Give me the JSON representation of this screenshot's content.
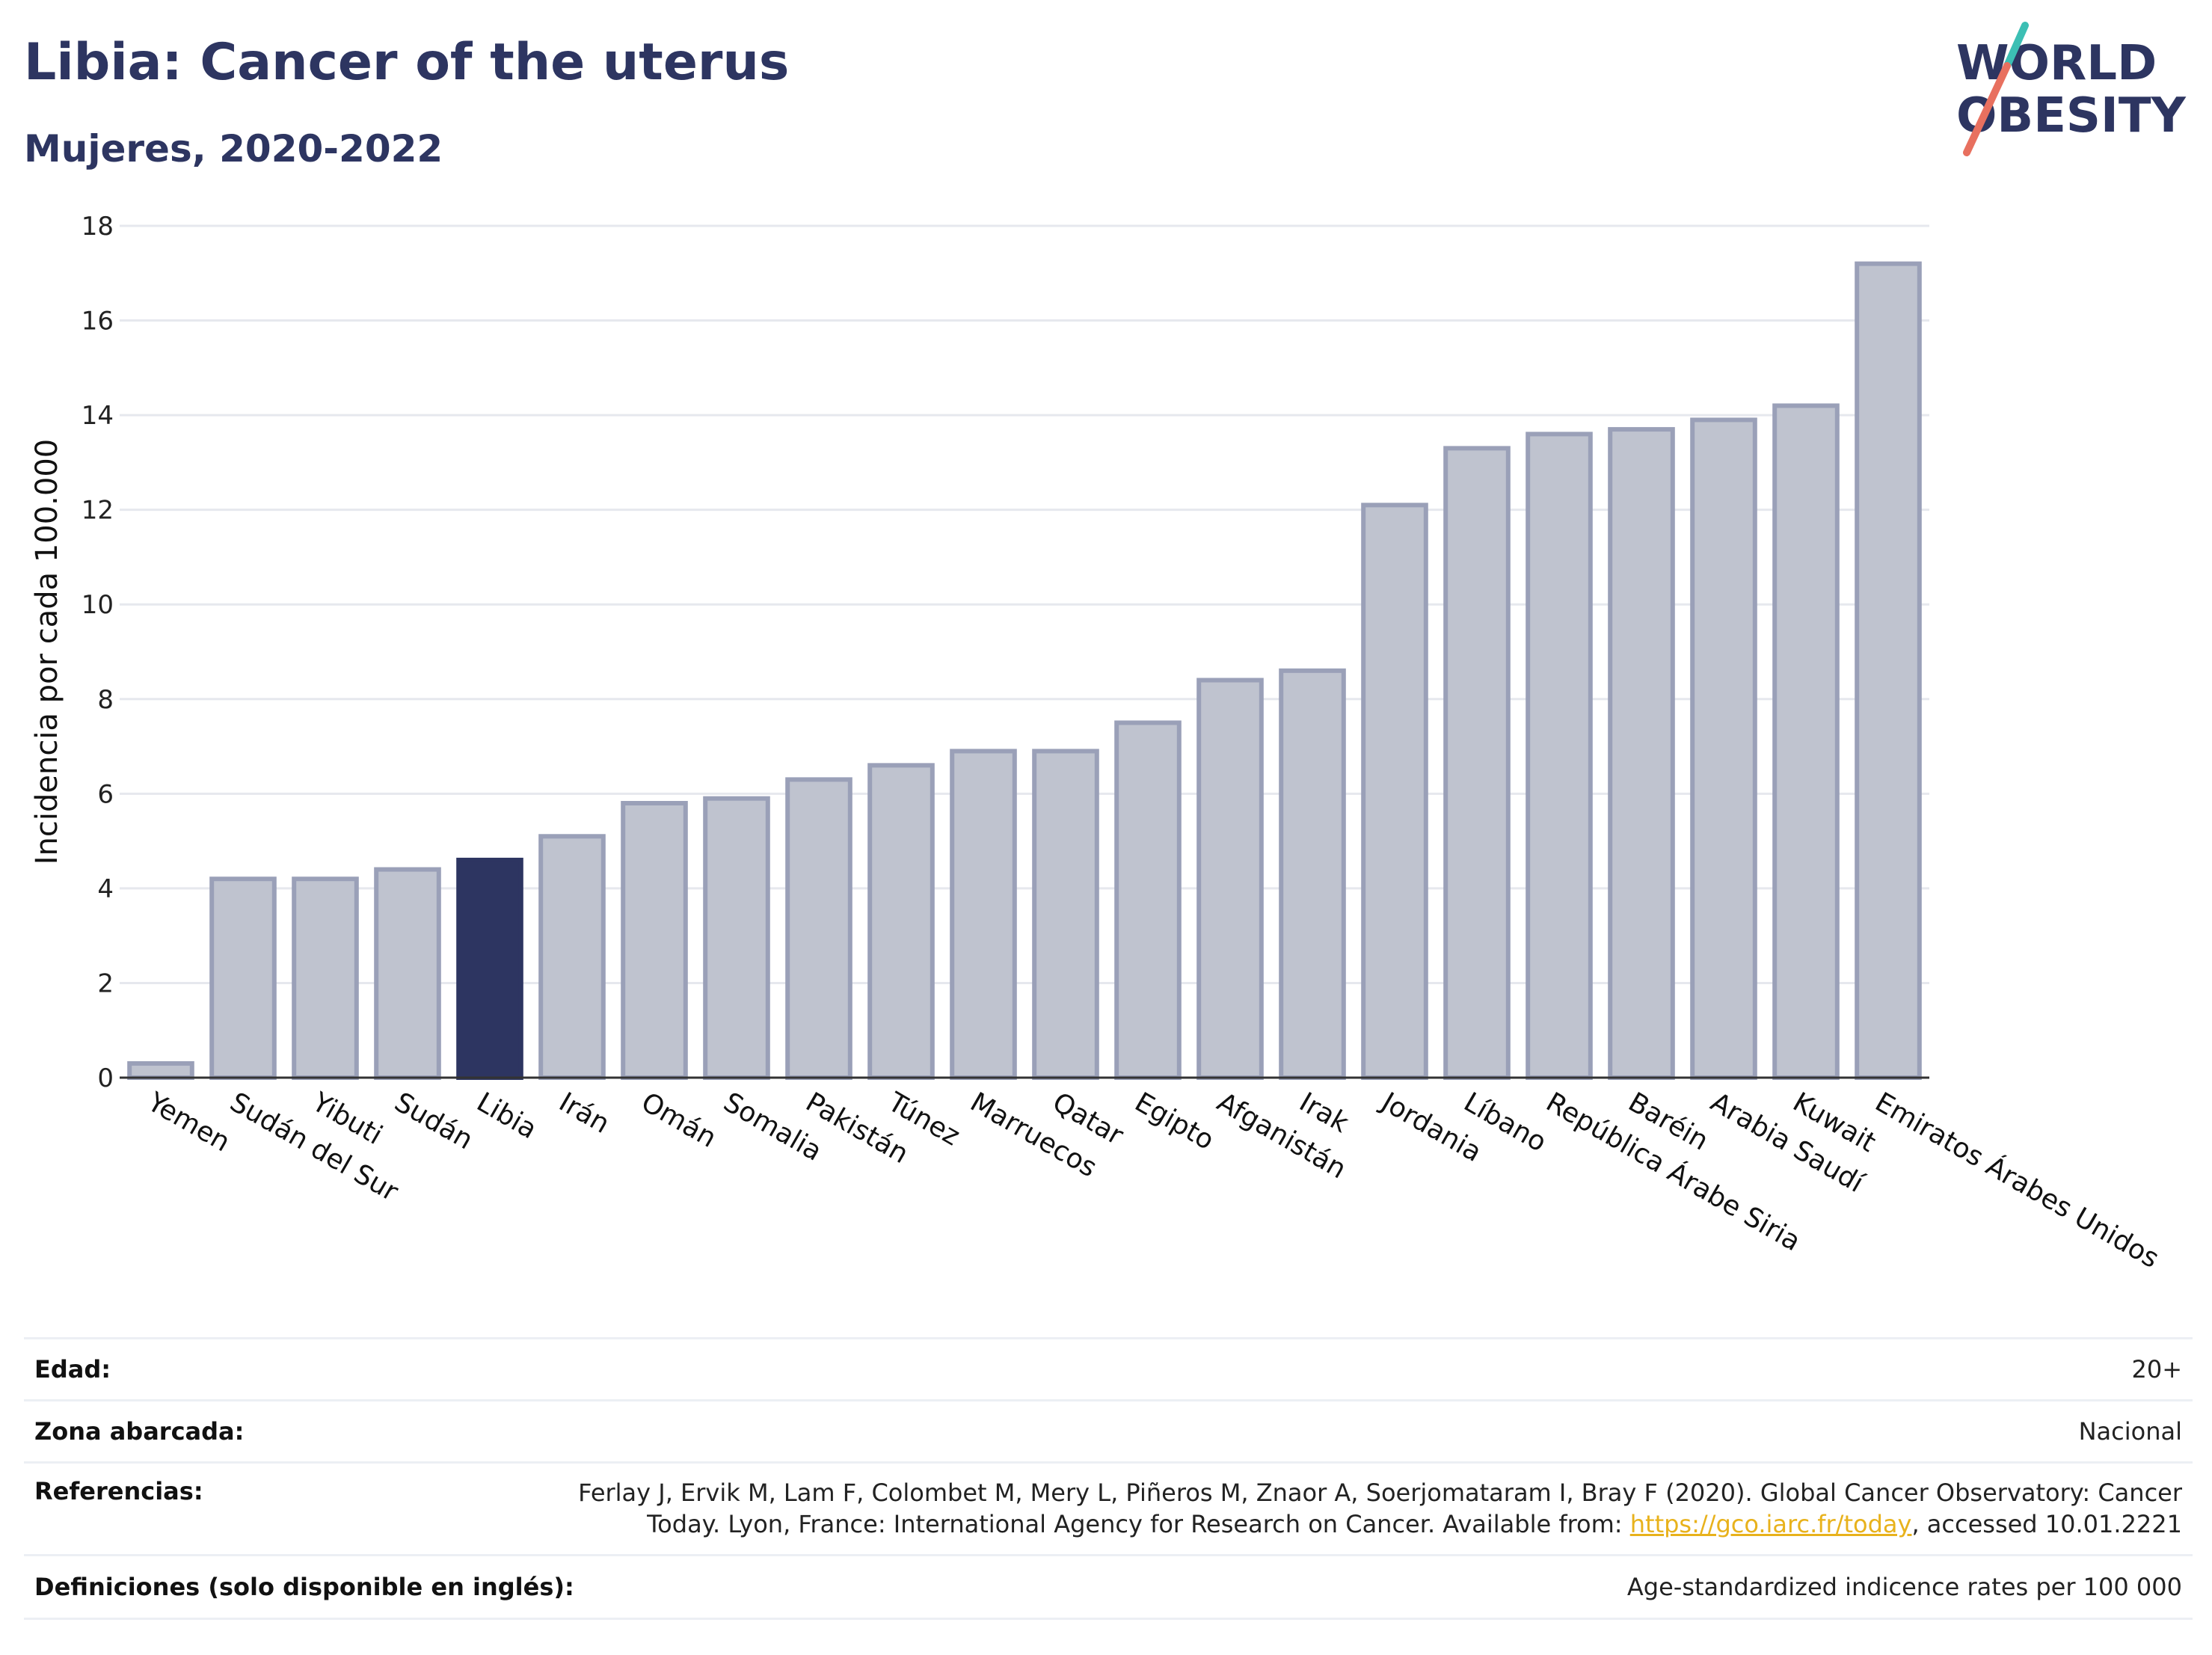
{
  "header": {
    "title": "Libia: Cancer of the uterus",
    "subtitle": "Mujeres, 2020-2022"
  },
  "logo": {
    "line1": "WORLD",
    "line2": "OBESITY",
    "accent_teal": "#3cbfb4",
    "accent_coral": "#e8705f",
    "text_color": "#2d3561"
  },
  "chart_data": {
    "type": "bar",
    "title": "Libia: Cancer of the uterus",
    "subtitle": "Mujeres, 2020-2022",
    "ylabel": "Incidencia por cada 100.000",
    "xlabel": "",
    "ylim": [
      0,
      18
    ],
    "yticks": [
      0,
      2,
      4,
      6,
      8,
      10,
      12,
      14,
      16,
      18
    ],
    "grid": true,
    "highlight": "Libia",
    "highlight_color": "#2d3561",
    "bar_color": "#bfc3cf",
    "bar_edge_color": "#9aa0b8",
    "categories": [
      "Yemen",
      "Sudán del Sur",
      "Yibuti",
      "Sudán",
      "Libia",
      "Irán",
      "Omán",
      "Somalia",
      "Pakistán",
      "Túnez",
      "Marruecos",
      "Qatar",
      "Egipto",
      "Afganistán",
      "Irak",
      "Jordania",
      "Líbano",
      "República Árabe Siria",
      "Baréin",
      "Arabia Saudí",
      "Kuwait",
      "Emiratos Árabes Unidos"
    ],
    "values": [
      0.3,
      4.2,
      4.2,
      4.4,
      4.6,
      5.1,
      5.8,
      5.9,
      6.3,
      6.6,
      6.9,
      6.9,
      7.5,
      8.4,
      8.6,
      12.1,
      13.3,
      13.6,
      13.7,
      13.9,
      14.2,
      17.2
    ]
  },
  "meta": {
    "age_label": "Edad:",
    "age_value": "20+",
    "area_label": "Zona abarcada:",
    "area_value": "Nacional",
    "refs_label": "Referencias:",
    "refs_line1": "Ferlay J, Ervik M, Lam F, Colombet M, Mery L, Piñeros M, Znaor A, Soerjomataram I, Bray F (2020). Global Cancer Observatory: Cancer",
    "refs_line2_pre": "Today. Lyon, France: International Agency for Research on Cancer. Available from: ",
    "refs_link": "https://gco.iarc.fr/today",
    "refs_line2_post": ", accessed 10.01.2221",
    "defs_label": "Definiciones (solo disponible en inglés):",
    "defs_value": "Age-standardized indicence rates per 100 000"
  }
}
